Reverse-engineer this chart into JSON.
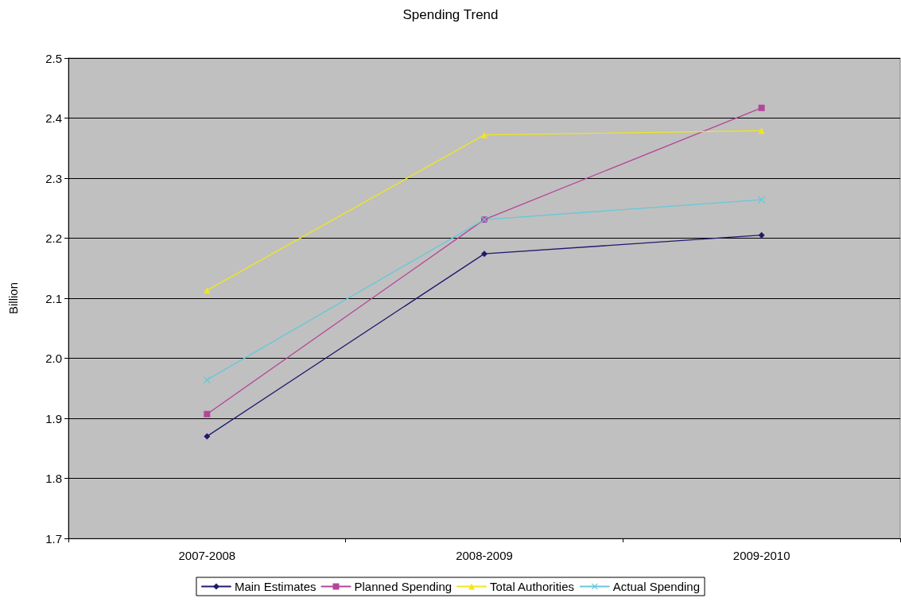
{
  "chart_data": {
    "type": "line",
    "title": "Spending Trend",
    "ylabel": "Billion",
    "categories": [
      "2007-2008",
      "2008-2009",
      "2009-2010"
    ],
    "series": [
      {
        "name": "Main Estimates",
        "color": "#1f1a6e",
        "marker": "diamond",
        "values": [
          1.87,
          2.174,
          2.205
        ]
      },
      {
        "name": "Planned Spending",
        "color": "#b5459a",
        "marker": "square",
        "values": [
          1.907,
          2.231,
          2.417
        ]
      },
      {
        "name": "Total Authorities",
        "color": "#f0e61e",
        "marker": "triangle",
        "values": [
          2.113,
          2.372,
          2.379
        ]
      },
      {
        "name": "Actual Spending",
        "color": "#66c8d8",
        "marker": "cross",
        "values": [
          1.964,
          2.231,
          2.264
        ]
      }
    ],
    "ylim": [
      1.7,
      2.5
    ],
    "yticks": [
      {
        "value": 1.7,
        "label": "1.7"
      },
      {
        "value": 1.8,
        "label": "1.8"
      },
      {
        "value": 1.9,
        "label": "1.9"
      },
      {
        "value": 2.0,
        "label": "2.0"
      },
      {
        "value": 2.1,
        "label": "2.1"
      },
      {
        "value": 2.2,
        "label": "2.2"
      },
      {
        "value": 2.3,
        "label": "2.3"
      },
      {
        "value": 2.4,
        "label": "2.4"
      },
      {
        "value": 2.5,
        "label": "2.5"
      }
    ],
    "grid": "y",
    "legend": "bottom"
  }
}
